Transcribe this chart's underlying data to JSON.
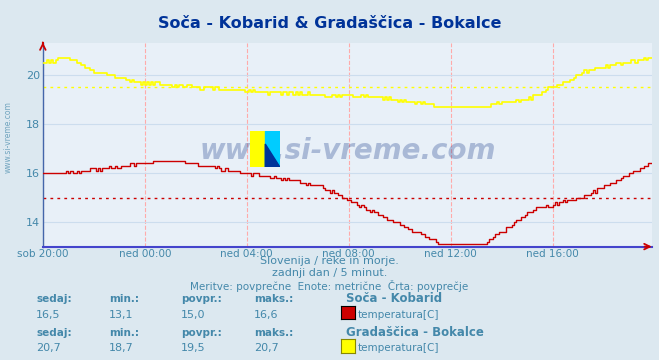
{
  "title": "Soča - Kobarid & Gradaščica - Bokalce",
  "title_color": "#003399",
  "bg_color": "#dce8f0",
  "plot_bg_color": "#e8f0f8",
  "xlabel_color": "#4488aa",
  "ylabel_color": "#4488aa",
  "x_ticks_labels": [
    "sob 20:00",
    "ned 00:00",
    "ned 04:00",
    "ned 08:00",
    "ned 12:00",
    "ned 16:00"
  ],
  "y_ticks": [
    14,
    16,
    18,
    20
  ],
  "ylim": [
    13.0,
    21.3
  ],
  "xlim": [
    0,
    287
  ],
  "line1_color": "#cc0000",
  "line2_color": "#ffff00",
  "avg1_value": 15.0,
  "avg2_value": 19.5,
  "watermark": "www.si-vreme.com",
  "watermark_color": "#1a3a8a",
  "watermark_alpha": 0.3,
  "footer_line1": "Slovenija / reke in morje.",
  "footer_line2": "zadnji dan / 5 minut.",
  "footer_line3": "Meritve: povprečne  Enote: metrične  Črta: povprečje",
  "footer_color": "#4488aa",
  "table_header1": "Soča - Kobarid",
  "table_header2": "Gradaščica - Bokalce",
  "table_label": "temperatura[C]",
  "stat_labels": [
    "sedaj:",
    "min.:",
    "povpr.:",
    "maks.:"
  ],
  "stats1": [
    "16,5",
    "13,1",
    "15,0",
    "16,6"
  ],
  "stats2": [
    "20,7",
    "18,7",
    "19,5",
    "20,7"
  ],
  "stat_color": "#4488aa",
  "legend_color1": "#cc0000",
  "legend_color2": "#ffff00",
  "bottom_spine_color": "#4444cc",
  "left_spine_color": "#4466aa",
  "vgrid_color": "#ffaaaa",
  "hgrid_color": "#ccddee",
  "x_tick_positions": [
    0,
    48,
    96,
    144,
    192,
    240
  ]
}
